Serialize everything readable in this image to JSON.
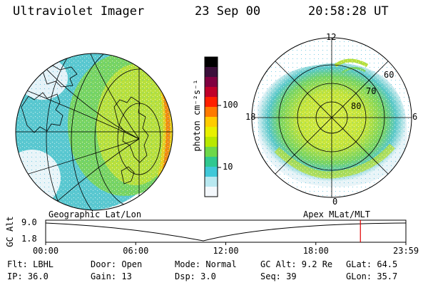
{
  "header": {
    "title": "Ultraviolet Imager",
    "date": "23 Sep 00",
    "time": "20:58:28 UT"
  },
  "colorbar": {
    "unit_label": "photon cm⁻²s⁻¹",
    "ticks": [
      "100",
      "10"
    ],
    "colors": [
      "#000000",
      "#3b0f3a",
      "#800040",
      "#c0002a",
      "#ff2000",
      "#ff7a00",
      "#ffcc00",
      "#e8f000",
      "#b8e800",
      "#6ed84a",
      "#30c890",
      "#40c8d8",
      "#b8e8f0",
      "#f4f8fc"
    ]
  },
  "polar_plot": {
    "labels": {
      "top": "12",
      "left": "18",
      "right": "6",
      "bottom": "0"
    },
    "rings": [
      "60",
      "70",
      "80"
    ]
  },
  "timeline": {
    "left_caption": "Geographic Lat/Lon",
    "right_caption": "Apex MLat/MLT",
    "y_axis_label": "GC Alt",
    "y_ticks": [
      "9.0",
      "1.8"
    ],
    "x_ticks": [
      "00:00",
      "06:00",
      "12:00",
      "18:00",
      "23:59"
    ],
    "marker_time_hours": 20.97
  },
  "info": {
    "filter": "Flt: LBHL",
    "door": "Door: Open",
    "mode": "Mode: Normal",
    "gc_alt": "GC Alt: 9.2 Re",
    "glat": "GLat:  64.5",
    "ip": "IP: 36.0",
    "gain": "Gain: 13",
    "dsp": "Dsp:    3.0",
    "seq": "Seq: 39",
    "glon": "GLon:  35.7"
  }
}
